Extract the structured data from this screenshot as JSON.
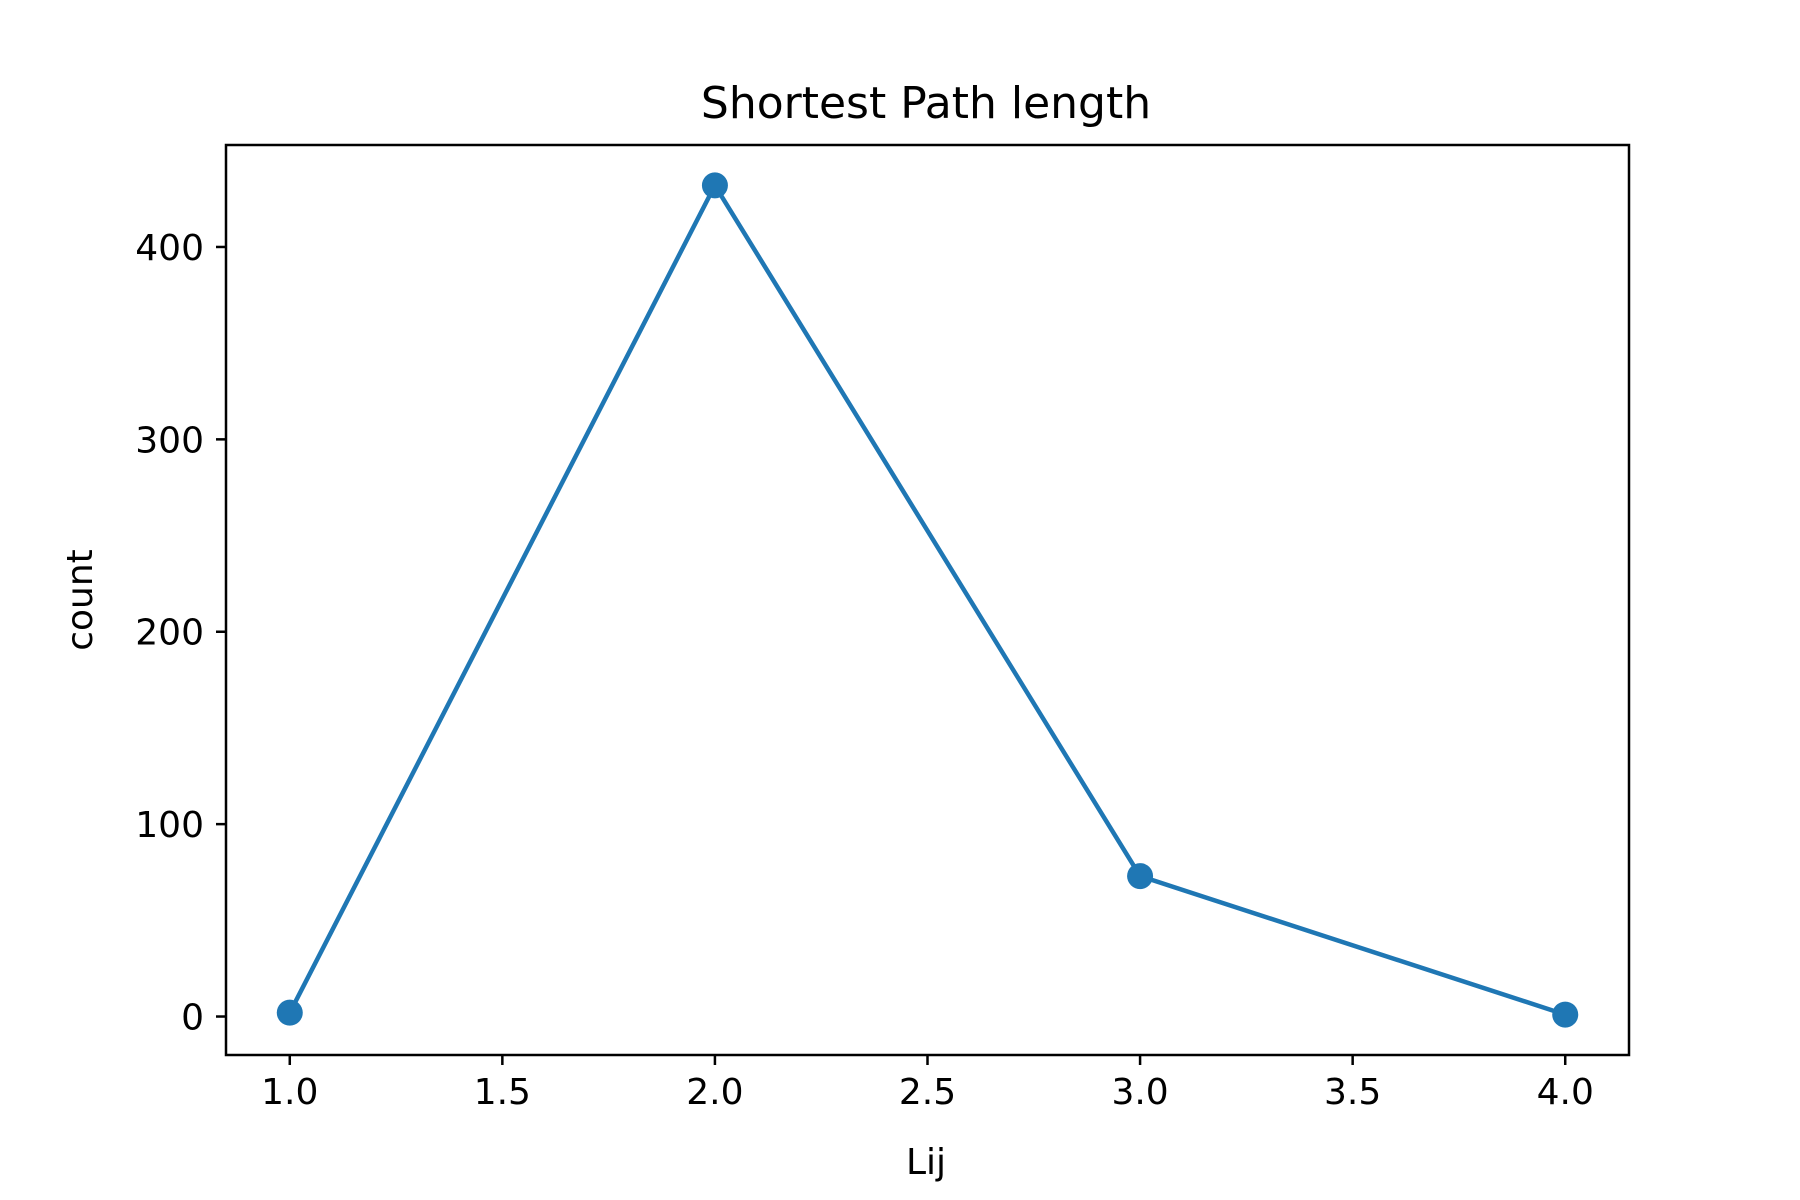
{
  "chart_data": {
    "type": "line",
    "title": "Shortest Path length",
    "xlabel": "Lij",
    "ylabel": "count",
    "xlim": [
      0.85,
      4.15
    ],
    "ylim": [
      -20,
      453
    ],
    "xticks": [
      1.0,
      1.5,
      2.0,
      2.5,
      3.0,
      3.5,
      4.0
    ],
    "xtick_labels": [
      "1.0",
      "1.5",
      "2.0",
      "2.5",
      "3.0",
      "3.5",
      "4.0"
    ],
    "yticks": [
      0,
      100,
      200,
      300,
      400
    ],
    "ytick_labels": [
      "0",
      "100",
      "200",
      "300",
      "400"
    ],
    "grid": false,
    "legend": "none",
    "series": [
      {
        "x": [
          1.0,
          2.0,
          3.0,
          4.0
        ],
        "y": [
          2,
          432,
          73,
          1
        ],
        "color": "#1f77b4",
        "marker": "circle"
      }
    ]
  }
}
